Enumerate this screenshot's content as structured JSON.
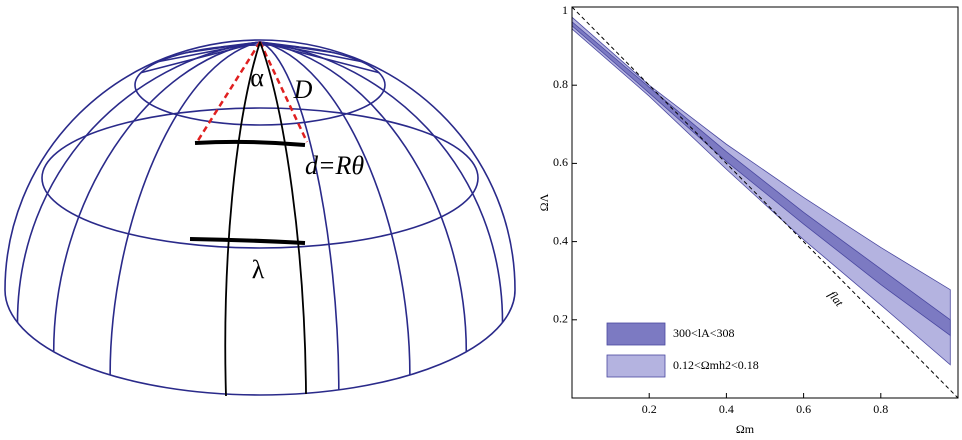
{
  "diagram": {
    "labels": [
      "α",
      "D",
      "d=Rθ",
      "λ"
    ]
  },
  "chart_data": {
    "type": "band",
    "x_label": "Ωm",
    "y_label": "ΩΛ",
    "xlim": [
      0,
      1
    ],
    "ylim": [
      0,
      1
    ],
    "xticks": [
      0.2,
      0.4,
      0.6,
      0.8
    ],
    "yticks": [
      0.2,
      0.4,
      0.6,
      0.8,
      1
    ],
    "legend": "lower left",
    "x": [
      0,
      0.2,
      0.4,
      0.6,
      0.8,
      0.98
    ],
    "series": [
      {
        "name": "0.12<Ωmh2<0.18",
        "color": "#b4b3e0",
        "upper": [
          0.974,
          0.8,
          0.649,
          0.513,
          0.385,
          0.277
        ],
        "lower": [
          0.944,
          0.772,
          0.585,
          0.405,
          0.238,
          0.085
        ]
      },
      {
        "name": "300<lA<308",
        "color": "#7c7ac2",
        "upper": [
          0.962,
          0.795,
          0.63,
          0.475,
          0.33,
          0.2
        ],
        "lower": [
          0.952,
          0.78,
          0.605,
          0.445,
          0.29,
          0.16
        ]
      }
    ],
    "reference": {
      "x": [
        0,
        1
      ],
      "values": [
        1,
        0
      ],
      "color": "#000000"
    },
    "annotation": "flat"
  }
}
